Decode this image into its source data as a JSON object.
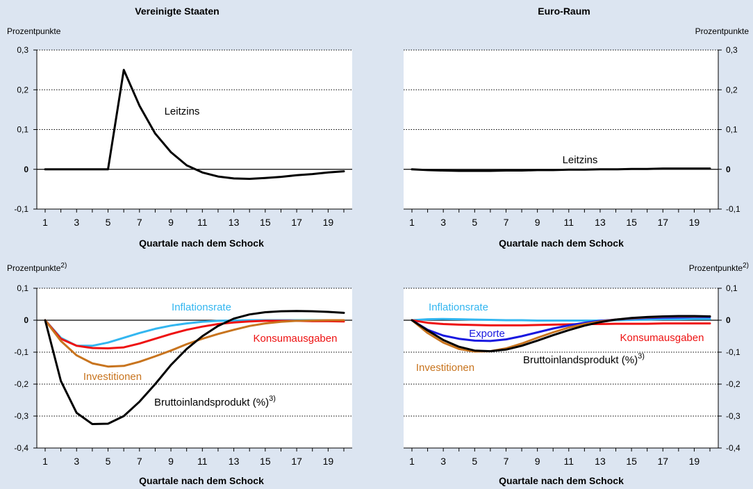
{
  "colors": {
    "background": "#dce5f1",
    "plot_bg": "#ffffff",
    "black": "#000000",
    "light_blue": "#33b6f0",
    "red": "#ee1111",
    "orange": "#c8741e",
    "blue": "#1818e0"
  },
  "chart_data": [
    {
      "type": "line",
      "title": "Vereinigte Staaten",
      "ylabel": "Prozentpunkte",
      "ylabel_sup": "",
      "xlabel": "Quartale nach dem Schock",
      "xlim": [
        1,
        20
      ],
      "ylim": [
        -0.1,
        0.3
      ],
      "yticks": [
        -0.1,
        0,
        0.1,
        0.2,
        0.3
      ],
      "ytick_labels": [
        "-0,1",
        "0",
        "0,1",
        "0,2",
        "0,3"
      ],
      "xtick_labels": [
        "1",
        "3",
        "5",
        "7",
        "9",
        "11",
        "13",
        "15",
        "17",
        "19"
      ],
      "grid": "dotted",
      "series": [
        {
          "name": "Leitzins",
          "name_sup": "",
          "color": "black",
          "values": [
            0,
            0,
            0,
            0,
            0,
            0.25,
            0.16,
            0.09,
            0.043,
            0.01,
            -0.008,
            -0.018,
            -0.023,
            -0.024,
            -0.022,
            -0.019,
            -0.015,
            -0.012,
            -0.008,
            -0.005
          ]
        }
      ]
    },
    {
      "type": "line",
      "title": "Euro-Raum",
      "ylabel": "Prozentpunkte",
      "ylabel_sup": "",
      "xlabel": "Quartale nach dem Schock",
      "xlim": [
        1,
        20
      ],
      "ylim": [
        -0.1,
        0.3
      ],
      "yticks": [
        -0.1,
        0,
        0.1,
        0.2,
        0.3
      ],
      "ytick_labels": [
        "-0,1",
        "0",
        "0,1",
        "0,2",
        "0,3"
      ],
      "xtick_labels": [
        "1",
        "3",
        "5",
        "7",
        "9",
        "11",
        "13",
        "15",
        "17",
        "19"
      ],
      "grid": "dotted",
      "series": [
        {
          "name": "Leitzins",
          "name_sup": "",
          "color": "black",
          "values": [
            0,
            -0.002,
            -0.003,
            -0.004,
            -0.004,
            -0.004,
            -0.003,
            -0.003,
            -0.002,
            -0.002,
            -0.001,
            -0.001,
            0,
            0,
            0.001,
            0.001,
            0.002,
            0.002,
            0.002,
            0.002
          ]
        }
      ]
    },
    {
      "type": "line",
      "title": "",
      "ylabel": "Prozentpunkte",
      "ylabel_sup": "2)",
      "xlabel": "Quartale nach dem Schock",
      "xlim": [
        1,
        20
      ],
      "ylim": [
        -0.4,
        0.1
      ],
      "yticks": [
        -0.4,
        -0.3,
        -0.2,
        -0.1,
        0,
        0.1
      ],
      "ytick_labels": [
        "-0,4",
        "-0,3",
        "-0,2",
        "-0,1",
        "0",
        "0,1"
      ],
      "xtick_labels": [
        "1",
        "3",
        "5",
        "7",
        "9",
        "11",
        "13",
        "15",
        "17",
        "19"
      ],
      "grid": "dotted",
      "series": [
        {
          "name": "Inflationsrate",
          "name_sup": "",
          "color": "light_blue",
          "values": [
            0,
            -0.055,
            -0.08,
            -0.08,
            -0.07,
            -0.055,
            -0.04,
            -0.027,
            -0.017,
            -0.01,
            -0.005,
            -0.002,
            -0.001,
            0,
            0,
            0,
            0,
            0,
            0,
            0
          ]
        },
        {
          "name": "Konsumausgaben",
          "name_sup": "",
          "color": "red",
          "values": [
            0,
            -0.058,
            -0.08,
            -0.087,
            -0.088,
            -0.085,
            -0.073,
            -0.058,
            -0.043,
            -0.03,
            -0.02,
            -0.012,
            -0.007,
            -0.004,
            -0.002,
            -0.002,
            -0.002,
            -0.003,
            -0.003,
            -0.004
          ]
        },
        {
          "name": "Investitionen",
          "name_sup": "",
          "color": "orange",
          "values": [
            0,
            -0.065,
            -0.11,
            -0.135,
            -0.145,
            -0.143,
            -0.13,
            -0.113,
            -0.095,
            -0.075,
            -0.058,
            -0.043,
            -0.03,
            -0.018,
            -0.01,
            -0.005,
            -0.002,
            -0.001,
            0,
            0
          ]
        },
        {
          "name": "Bruttoinlandsprodukt (%)",
          "name_sup": "3)",
          "color": "black",
          "values": [
            0,
            -0.19,
            -0.29,
            -0.325,
            -0.324,
            -0.3,
            -0.255,
            -0.2,
            -0.14,
            -0.09,
            -0.05,
            -0.018,
            0.005,
            0.018,
            0.025,
            0.028,
            0.029,
            0.028,
            0.026,
            0.023
          ]
        }
      ]
    },
    {
      "type": "line",
      "title": "",
      "ylabel": "Prozentpunkte",
      "ylabel_sup": "2)",
      "xlabel": "Quartale nach dem Schock",
      "xlim": [
        1,
        20
      ],
      "ylim": [
        -0.4,
        0.1
      ],
      "yticks": [
        -0.4,
        -0.3,
        -0.2,
        -0.1,
        0,
        0.1
      ],
      "ytick_labels": [
        "-0,4",
        "-0,3",
        "-0,2",
        "-0,1",
        "0",
        "0,1"
      ],
      "xtick_labels": [
        "1",
        "3",
        "5",
        "7",
        "9",
        "11",
        "13",
        "15",
        "17",
        "19"
      ],
      "grid": "dotted",
      "series": [
        {
          "name": "Inflationsrate",
          "name_sup": "",
          "color": "light_blue",
          "values": [
            0,
            0.003,
            0.004,
            0.003,
            0.002,
            0.001,
            0,
            0,
            -0.001,
            -0.001,
            -0.001,
            -0.001,
            -0.001,
            0,
            0.001,
            0.002,
            0.003,
            0.003,
            0.004,
            0.004
          ]
        },
        {
          "name": "Konsumausgaben",
          "name_sup": "",
          "color": "red",
          "values": [
            0,
            -0.008,
            -0.012,
            -0.014,
            -0.015,
            -0.016,
            -0.016,
            -0.016,
            -0.015,
            -0.014,
            -0.013,
            -0.012,
            -0.012,
            -0.011,
            -0.011,
            -0.011,
            -0.01,
            -0.01,
            -0.01,
            -0.01
          ]
        },
        {
          "name": "Exporte",
          "name_sup": "",
          "color": "blue",
          "values": [
            0,
            -0.03,
            -0.048,
            -0.058,
            -0.064,
            -0.065,
            -0.06,
            -0.05,
            -0.038,
            -0.026,
            -0.016,
            -0.008,
            -0.002,
            0.002,
            0.005,
            0.007,
            0.008,
            0.009,
            0.01,
            0.01
          ]
        },
        {
          "name": "Investitionen",
          "name_sup": "",
          "color": "orange",
          "values": [
            0,
            -0.04,
            -0.07,
            -0.09,
            -0.098,
            -0.097,
            -0.088,
            -0.073,
            -0.055,
            -0.038,
            -0.023,
            -0.012,
            -0.004,
            0.002,
            0.006,
            0.009,
            0.011,
            0.012,
            0.012,
            0.012
          ]
        },
        {
          "name": "Bruttoinlandsprodukt (%)",
          "name_sup": "3)",
          "color": "black",
          "values": [
            0,
            -0.032,
            -0.062,
            -0.083,
            -0.095,
            -0.097,
            -0.092,
            -0.08,
            -0.064,
            -0.047,
            -0.031,
            -0.017,
            -0.006,
            0.002,
            0.007,
            0.01,
            0.012,
            0.013,
            0.013,
            0.012
          ]
        }
      ]
    }
  ]
}
